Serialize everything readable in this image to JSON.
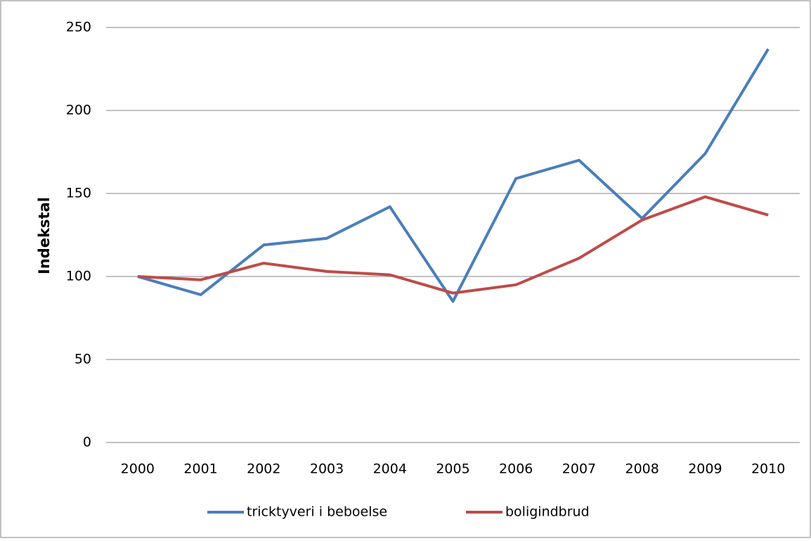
{
  "chart_data": {
    "type": "line",
    "y_label": "Indekstal",
    "categories": [
      "2000",
      "2001",
      "2002",
      "2003",
      "2004",
      "2005",
      "2006",
      "2007",
      "2008",
      "2009",
      "2010"
    ],
    "series": [
      {
        "name": "tricktyveri i beboelse",
        "color": "#4a7ebb",
        "values": [
          100,
          89,
          119,
          123,
          142,
          85,
          159,
          170,
          135,
          174,
          237
        ]
      },
      {
        "name": "boligindbrud",
        "color": "#be4b48",
        "values": [
          100,
          98,
          108,
          103,
          101,
          90,
          95,
          111,
          134,
          148,
          137
        ]
      }
    ],
    "ylim": [
      0,
      250
    ],
    "yticks": [
      0,
      50,
      100,
      150,
      200,
      250
    ],
    "grid": true,
    "legend": "bottom"
  }
}
